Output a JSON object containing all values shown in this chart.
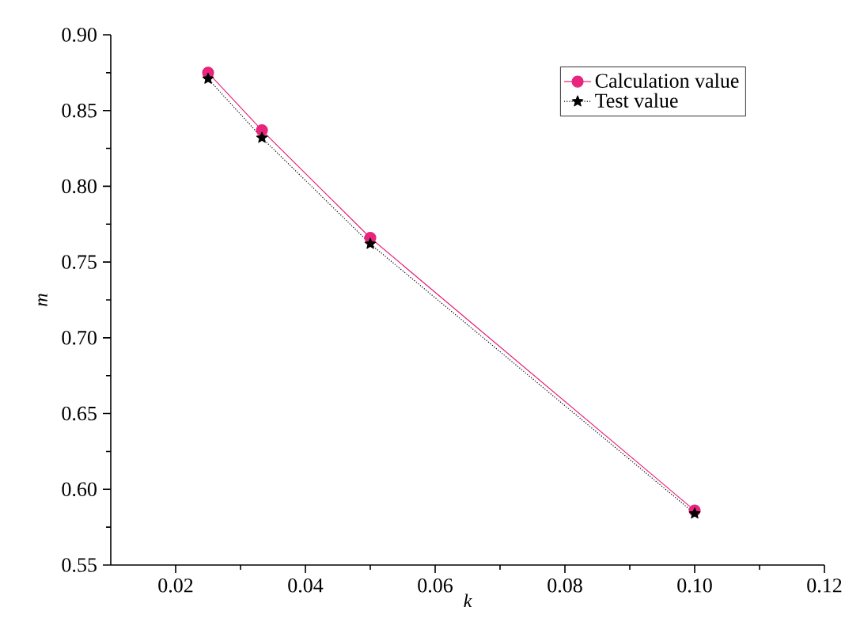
{
  "chart_data": {
    "type": "line",
    "xlabel": "k",
    "ylabel": "m",
    "x": [
      0.025,
      0.0333,
      0.05,
      0.1
    ],
    "series": [
      {
        "name": "Calculation value",
        "color": "#e8247c",
        "values": [
          0.875,
          0.837,
          0.766,
          0.586
        ],
        "marker": "circle",
        "line_style": "solid"
      },
      {
        "name": "Test value",
        "color": "#000000",
        "values": [
          0.871,
          0.832,
          0.762,
          0.584
        ],
        "marker": "star",
        "line_style": "dotted"
      }
    ],
    "xlim": [
      0.01,
      0.12
    ],
    "xticks": [
      {
        "value": 0.02,
        "label": "0.02"
      },
      {
        "value": 0.04,
        "label": "0.04"
      },
      {
        "value": 0.06,
        "label": "0.06"
      },
      {
        "value": 0.08,
        "label": "0.08"
      },
      {
        "value": 0.1,
        "label": "0.10"
      },
      {
        "value": 0.12,
        "label": "0.12"
      }
    ],
    "ylim": [
      0.55,
      0.9
    ],
    "yticks": [
      {
        "value": 0.55,
        "label": "0.55"
      },
      {
        "value": 0.6,
        "label": "0.60"
      },
      {
        "value": 0.65,
        "label": "0.65"
      },
      {
        "value": 0.7,
        "label": "0.70"
      },
      {
        "value": 0.75,
        "label": "0.75"
      },
      {
        "value": 0.8,
        "label": "0.80"
      },
      {
        "value": 0.85,
        "label": "0.85"
      },
      {
        "value": 0.9,
        "label": "0.90"
      }
    ],
    "legend": "top right"
  }
}
